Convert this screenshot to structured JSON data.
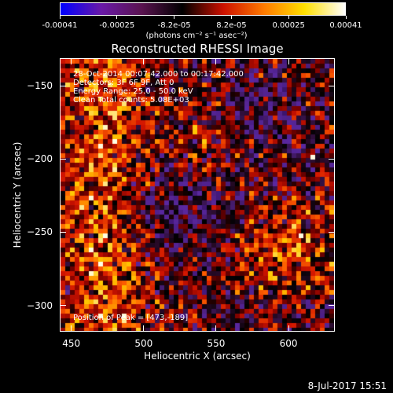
{
  "colorbar": {
    "tick_labels": [
      "-0.00041",
      "-0.00025",
      "-8.2e-05",
      "8.2e-05",
      "0.00025",
      "0.00041"
    ],
    "units_label": "(photons cm⁻² s⁻¹ asec⁻²)",
    "colors": [
      "#0000ff",
      "#6a1aa8",
      "#5a1450",
      "#000000",
      "#cc1100",
      "#ff7a00",
      "#ffe000",
      "#ffffff"
    ]
  },
  "title": "Reconstructed RHESSI Image",
  "info": {
    "time_range": "28-Oct-2014 00:07:42.000 to 00:17:42.000",
    "detectors": "Detectors: 3F 6F 9F, Att 0",
    "energy": "Energy Range: 25.0 - 50.0 keV",
    "clean": "Clean    Total counts: 5.08E+03",
    "peak": "Position of Peak = [473,-189]"
  },
  "footer": {
    "date": "8-Jul-2017 15:51"
  },
  "chart_data": {
    "type": "heatmap",
    "title": "Reconstructed RHESSI Image",
    "xlabel": "Heliocentric X (arcsec)",
    "ylabel": "Heliocentric Y (arcsec)",
    "xlim": [
      442,
      632
    ],
    "ylim": [
      -318,
      -131
    ],
    "x_ticks": [
      450,
      500,
      550,
      600
    ],
    "y_ticks": [
      -150,
      -200,
      -250,
      -300
    ],
    "x_tick_labels": [
      "450",
      "500",
      "550",
      "600"
    ],
    "y_tick_labels": [
      "−150",
      "−200",
      "−250",
      "−300"
    ],
    "colorbar_range": [
      -0.00041,
      0.00041
    ],
    "peak": [
      473,
      -189
    ]
  }
}
